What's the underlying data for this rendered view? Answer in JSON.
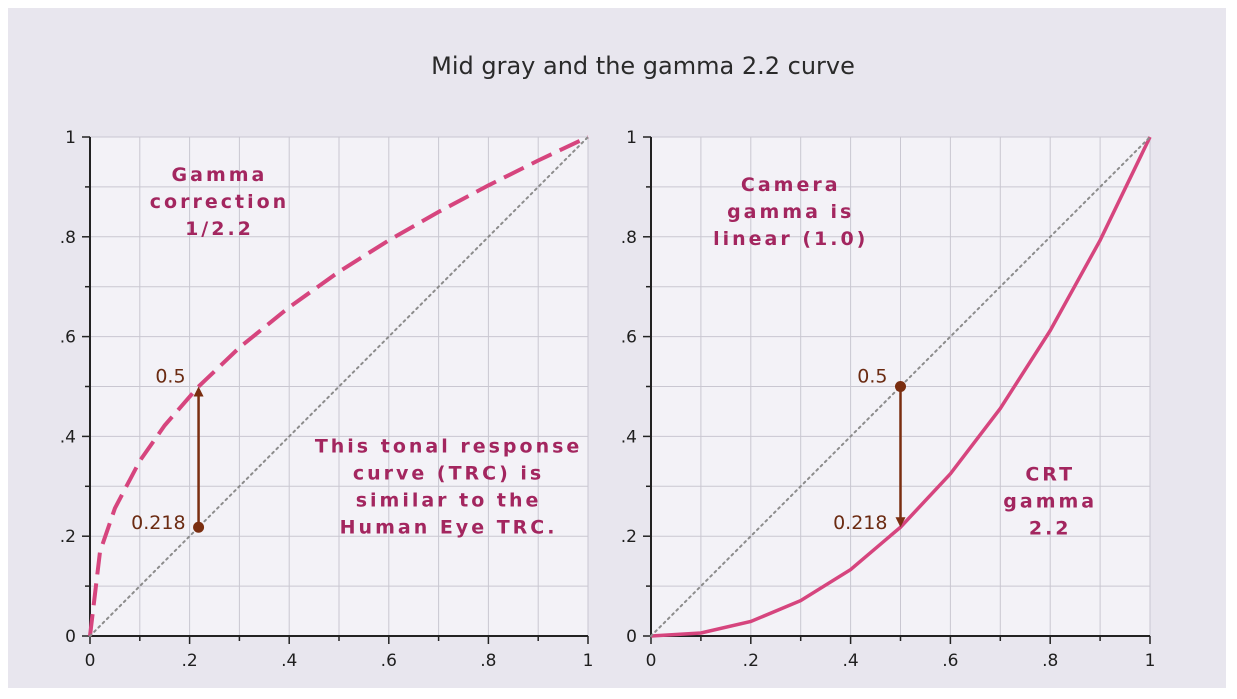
{
  "figure_title": "Mid gray and the gamma 2.2 curve",
  "colors": {
    "background": "#e8e6ee",
    "panel_grid": "#f3f2f7",
    "curve": "#d6457e",
    "annotation_text": "#a3265f",
    "marker": "#7a2e10",
    "diagonal": "#8c8c8c"
  },
  "chart_data": [
    {
      "type": "line",
      "xlim": [
        0,
        1
      ],
      "ylim": [
        0,
        1
      ],
      "grid": true,
      "x_tick_labels": [
        "0",
        ".2",
        ".4",
        ".6",
        ".8",
        "1"
      ],
      "y_tick_labels": [
        "0",
        ".2",
        ".4",
        ".6",
        ".8",
        "1"
      ],
      "series": [
        {
          "style": "dashed",
          "x": [
            0,
            0.02,
            0.05,
            0.1,
            0.15,
            0.218,
            0.3,
            0.4,
            0.5,
            0.6,
            0.7,
            0.8,
            0.9,
            1
          ],
          "y": [
            0,
            0.169,
            0.256,
            0.351,
            0.422,
            0.5,
            0.578,
            0.659,
            0.73,
            0.793,
            0.85,
            0.903,
            0.953,
            1
          ]
        },
        {
          "style": "dotted",
          "x": [
            0,
            1
          ],
          "y": [
            0,
            1
          ]
        }
      ],
      "annotations": [
        {
          "text_lines": [
            "Gamma",
            "correction",
            "1/2.2"
          ],
          "x": 0.26,
          "y": 0.86
        },
        {
          "text_lines": [
            "This tonal response",
            "curve (TRC) is",
            "similar to the",
            "Human Eye TRC."
          ],
          "x": 0.72,
          "y": 0.29
        }
      ],
      "marker": {
        "x": 0.218,
        "from_y": 0.218,
        "to_y": 0.5,
        "upper_label": "0.5",
        "lower_label": "0.218"
      }
    },
    {
      "type": "line",
      "xlim": [
        0,
        1
      ],
      "ylim": [
        0,
        1
      ],
      "grid": true,
      "x_tick_labels": [
        "0",
        ".2",
        ".4",
        ".6",
        ".8",
        "1"
      ],
      "y_tick_labels": [
        "0",
        ".2",
        ".4",
        ".6",
        ".8",
        "1"
      ],
      "series": [
        {
          "style": "solid",
          "x": [
            0,
            0.1,
            0.2,
            0.3,
            0.4,
            0.5,
            0.6,
            0.7,
            0.8,
            0.9,
            1
          ],
          "y": [
            0,
            0.006,
            0.029,
            0.071,
            0.133,
            0.218,
            0.325,
            0.456,
            0.612,
            0.793,
            1
          ]
        },
        {
          "style": "dotted",
          "x": [
            0,
            1
          ],
          "y": [
            0,
            1
          ]
        }
      ],
      "annotations": [
        {
          "text_lines": [
            "Camera",
            "gamma is",
            "linear (1.0)"
          ],
          "x": 0.28,
          "y": 0.84
        },
        {
          "text_lines": [
            "CRT",
            "gamma",
            "2.2"
          ],
          "x": 0.8,
          "y": 0.26
        }
      ],
      "marker": {
        "x": 0.5,
        "from_y": 0.5,
        "to_y": 0.218,
        "upper_label": "0.5",
        "lower_label": "0.218"
      }
    }
  ]
}
